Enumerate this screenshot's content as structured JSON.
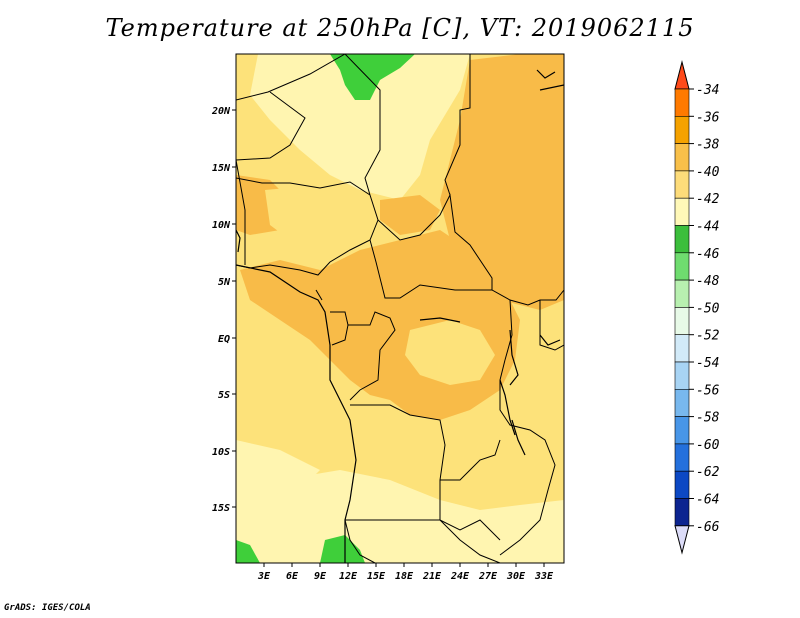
{
  "title": "Temperature at 250hPa [C], VT: 2019062115",
  "credit": "GrADS: IGES/COLA",
  "map": {
    "lat_labels": [
      "20N",
      "15N",
      "10N",
      "5N",
      "EQ",
      "5S",
      "10S",
      "15S"
    ],
    "lon_labels": [
      "3E",
      "6E",
      "9E",
      "12E",
      "15E",
      "18E",
      "21E",
      "24E",
      "27E",
      "30E",
      "33E"
    ],
    "colors": {
      "light_yellow": "#fff5b0",
      "yellow": "#fde27a",
      "light_orange": "#fbc658",
      "orange": "#f5ad3a",
      "green": "#3fcf3a"
    }
  },
  "colorbar": {
    "labels": [
      "-34",
      "-36",
      "-38",
      "-40",
      "-42",
      "-44",
      "-46",
      "-48",
      "-50",
      "-52",
      "-54",
      "-56",
      "-58",
      "-60",
      "-62",
      "-64",
      "-66"
    ],
    "colors": [
      "#ff4a1a",
      "#ff7a00",
      "#f5a200",
      "#f8c04a",
      "#fddc7a",
      "#fff8b8",
      "#3cbe3c",
      "#6fdc6f",
      "#b8f0b0",
      "#e8fae8",
      "#d2eaf8",
      "#a8d4f4",
      "#78b8ee",
      "#4896e8",
      "#2470dc",
      "#0c48c4",
      "#0c2490",
      "#081070",
      "#dcdcf8"
    ]
  }
}
